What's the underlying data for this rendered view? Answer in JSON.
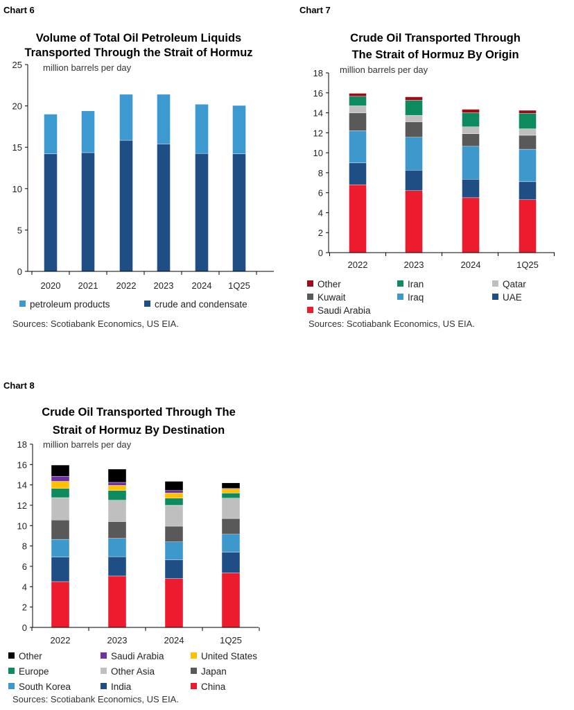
{
  "chart_data": [
    {
      "label": "Chart 6",
      "type": "bar",
      "stacked": true,
      "title": [
        "Volume of Total Oil Petroleum Liquids",
        "Transported Through the Strait of Hormuz"
      ],
      "ylabel": "million barrels per day",
      "ylim": [
        0,
        25
      ],
      "yticks": [
        0,
        5,
        10,
        15,
        20,
        25
      ],
      "categories": [
        "2020",
        "2021",
        "2022",
        "2023",
        "2024",
        "1Q25"
      ],
      "series": [
        {
          "name": "crude and condensate",
          "color": "#1f4e84",
          "values": [
            14.2,
            14.35,
            15.85,
            15.4,
            14.25,
            14.2
          ]
        },
        {
          "name": "petroleum products",
          "color": "#3d9ad1",
          "values": [
            4.8,
            5.05,
            5.55,
            6.0,
            5.95,
            5.85
          ]
        }
      ],
      "legend_order": [
        1,
        0
      ],
      "legend_position": "bottom",
      "source": "Sources: Scotiabank Economics, US EIA."
    },
    {
      "label": "Chart 7",
      "type": "bar",
      "stacked": true,
      "title": [
        "Crude Oil Transported Through",
        "The Strait of Hormuz By Origin"
      ],
      "ylabel": "million barrels per day",
      "ylim": [
        0,
        18
      ],
      "yticks": [
        0,
        2,
        4,
        6,
        8,
        10,
        12,
        14,
        16,
        18
      ],
      "categories": [
        "2022",
        "2023",
        "2024",
        "1Q25"
      ],
      "series": [
        {
          "name": "Saudi Arabia",
          "color": "#ed1b2e",
          "values": [
            6.8,
            6.2,
            5.5,
            5.3
          ]
        },
        {
          "name": "UAE",
          "color": "#1f4e84",
          "values": [
            2.2,
            2.05,
            1.85,
            1.8
          ]
        },
        {
          "name": "Iraq",
          "color": "#3d98cc",
          "values": [
            3.2,
            3.3,
            3.3,
            3.25
          ]
        },
        {
          "name": "Kuwait",
          "color": "#595959",
          "values": [
            1.8,
            1.55,
            1.25,
            1.4
          ]
        },
        {
          "name": "Qatar",
          "color": "#bfbfbf",
          "values": [
            0.7,
            0.65,
            0.7,
            0.65
          ]
        },
        {
          "name": "Iran",
          "color": "#0e8a5f",
          "values": [
            0.95,
            1.5,
            1.4,
            1.55
          ]
        },
        {
          "name": "Other",
          "color": "#9b0d1a",
          "values": [
            0.3,
            0.35,
            0.35,
            0.3
          ]
        }
      ],
      "legend_order": [
        6,
        5,
        4,
        3,
        2,
        1,
        0
      ],
      "legend_position": "bottom",
      "source": "Sources: Scotiabank Economics, US EIA."
    },
    {
      "label": "Chart 8",
      "type": "bar",
      "stacked": true,
      "title": [
        "Crude Oil Transported Through The",
        "Strait of Hormuz By Destination"
      ],
      "ylabel": "million barrels per day",
      "ylim": [
        0,
        18
      ],
      "yticks": [
        0,
        2,
        4,
        6,
        8,
        10,
        12,
        14,
        16,
        18
      ],
      "categories": [
        "2022",
        "2023",
        "2024",
        "1Q25"
      ],
      "series": [
        {
          "name": "China",
          "color": "#ed1b2e",
          "values": [
            4.5,
            5.05,
            4.8,
            5.35
          ]
        },
        {
          "name": "India",
          "color": "#1f4e84",
          "values": [
            2.4,
            1.9,
            1.85,
            2.05
          ]
        },
        {
          "name": "South Korea",
          "color": "#3d98cc",
          "values": [
            1.75,
            1.8,
            1.75,
            1.75
          ]
        },
        {
          "name": "Japan",
          "color": "#595959",
          "values": [
            1.9,
            1.65,
            1.55,
            1.55
          ]
        },
        {
          "name": "Other Asia",
          "color": "#bfbfbf",
          "values": [
            2.2,
            2.1,
            2.05,
            2.0
          ]
        },
        {
          "name": "Europe",
          "color": "#0e8a5f",
          "values": [
            0.9,
            0.95,
            0.7,
            0.5
          ]
        },
        {
          "name": "United States",
          "color": "#ffc000",
          "values": [
            0.7,
            0.5,
            0.5,
            0.4
          ]
        },
        {
          "name": "Saudi Arabia",
          "color": "#7030a0",
          "values": [
            0.5,
            0.3,
            0.25,
            0.05
          ]
        },
        {
          "name": "Other",
          "color": "#000000",
          "values": [
            1.1,
            1.3,
            0.9,
            0.55
          ]
        }
      ],
      "legend_order": [
        8,
        7,
        6,
        5,
        4,
        3,
        2,
        1,
        0
      ],
      "legend_position": "bottom",
      "source": "Sources: Scotiabank Economics, US EIA."
    }
  ]
}
